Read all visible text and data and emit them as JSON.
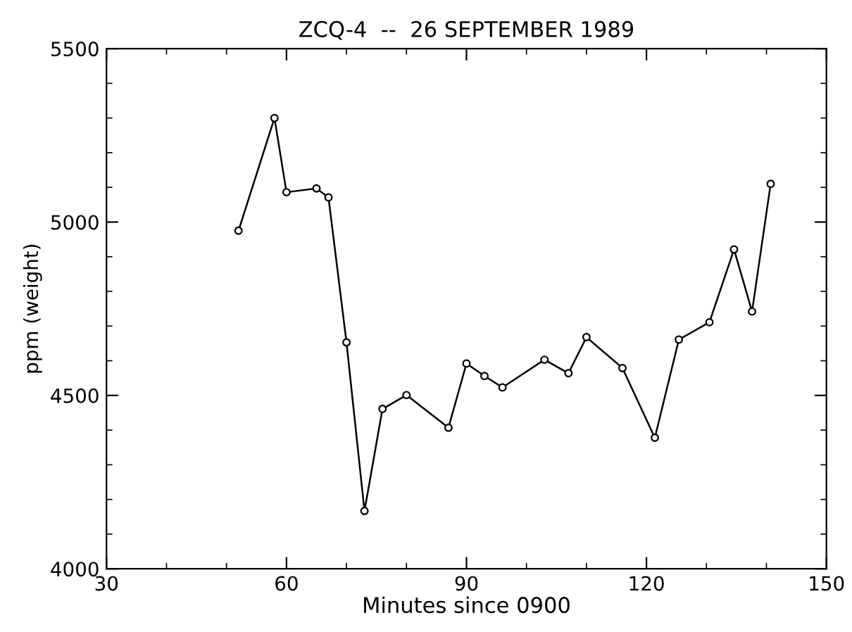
{
  "chart_data": {
    "type": "line",
    "title": "ZCQ-4  --  26 SEPTEMBER 1989",
    "xlabel": "Minutes since 0900",
    "ylabel": "ppm (weight)",
    "x": [
      52,
      58,
      60,
      65,
      67,
      70,
      73,
      76,
      80,
      87,
      90,
      93,
      96,
      103,
      107,
      110,
      116,
      121.4,
      125.4,
      130.5,
      134.6,
      137.6,
      140.7
    ],
    "series": [
      {
        "color": "#000000",
        "values": [
          4975,
          5300,
          5086,
          5097,
          5071,
          4653,
          4167,
          4461,
          4501,
          4407,
          4592,
          4556,
          4523,
          4603,
          4564,
          4668,
          4579,
          4378,
          4661,
          4711,
          4921,
          4742,
          5110
        ]
      }
    ],
    "xlim": [
      30,
      150
    ],
    "xticks": [
      30,
      60,
      90,
      120,
      150
    ],
    "ylim": [
      4000,
      5500
    ],
    "yticks": [
      4000,
      4500,
      5000,
      5500
    ],
    "grid": false,
    "legend": false,
    "marker": "circle",
    "line_style": "solid"
  }
}
